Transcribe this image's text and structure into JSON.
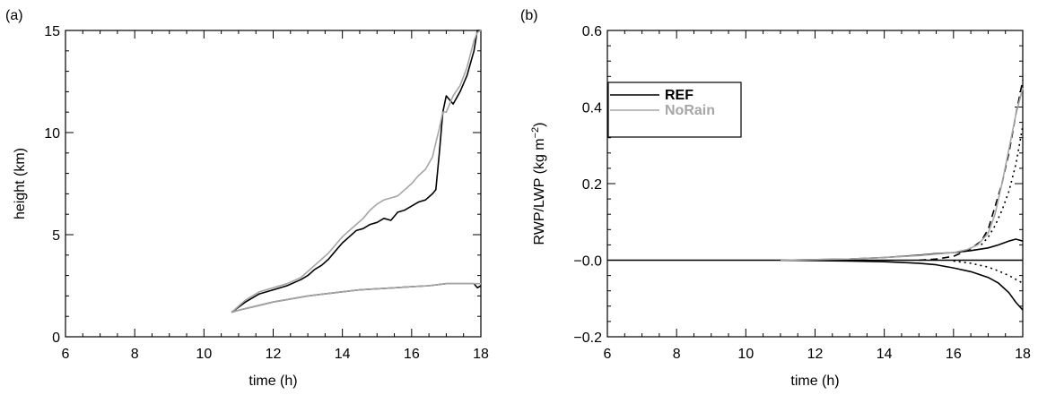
{
  "chart_data": [
    {
      "panel_label": "(a)",
      "type": "line",
      "title": "",
      "xlabel": "time (h)",
      "ylabel": "height (km)",
      "xlim": [
        6,
        18
      ],
      "ylim": [
        0,
        15
      ],
      "xticks": [
        6,
        8,
        10,
        12,
        14,
        16,
        18
      ],
      "yticks": [
        0,
        5,
        10,
        15
      ],
      "grid": false,
      "legend": null,
      "series": [
        {
          "role": "REF cloud top",
          "color": "#000000",
          "dash": "solid",
          "x": [
            10.8,
            11.2,
            11.6,
            12.0,
            12.4,
            12.8,
            13.0,
            13.2,
            13.4,
            13.6,
            13.8,
            14.0,
            14.2,
            14.4,
            14.6,
            14.8,
            15.0,
            15.2,
            15.4,
            15.6,
            15.8,
            16.0,
            16.2,
            16.4,
            16.6,
            16.7,
            16.8,
            16.9,
            17.0,
            17.2,
            17.4,
            17.6,
            17.8,
            17.9,
            18.0
          ],
          "y": [
            1.2,
            1.7,
            2.1,
            2.3,
            2.5,
            2.8,
            3.0,
            3.3,
            3.5,
            3.8,
            4.2,
            4.6,
            4.9,
            5.2,
            5.3,
            5.5,
            5.6,
            5.8,
            5.7,
            6.1,
            6.2,
            6.4,
            6.6,
            6.7,
            7.0,
            7.2,
            9.0,
            11.0,
            11.8,
            11.4,
            12.0,
            12.8,
            14.0,
            15.0,
            15.0
          ]
        },
        {
          "role": "NoRain cloud top",
          "color": "#a6a6a6",
          "dash": "solid",
          "x": [
            10.8,
            11.2,
            11.6,
            12.0,
            12.4,
            12.8,
            13.0,
            13.2,
            13.4,
            13.6,
            13.8,
            14.0,
            14.2,
            14.4,
            14.6,
            14.8,
            15.0,
            15.2,
            15.4,
            15.6,
            15.8,
            16.0,
            16.2,
            16.4,
            16.6,
            16.7,
            16.8,
            16.9,
            17.0,
            17.2,
            17.4,
            17.6,
            17.8,
            17.9,
            18.0
          ],
          "y": [
            1.2,
            1.8,
            2.2,
            2.4,
            2.6,
            2.9,
            3.2,
            3.5,
            3.8,
            4.1,
            4.5,
            4.9,
            5.2,
            5.5,
            5.8,
            6.2,
            6.5,
            6.7,
            6.8,
            6.9,
            7.2,
            7.5,
            7.9,
            8.2,
            8.8,
            9.5,
            10.2,
            11.0,
            11.0,
            11.8,
            12.3,
            13.2,
            14.5,
            14.9,
            15.0
          ]
        },
        {
          "role": "REF cloud base",
          "color": "#000000",
          "dash": "solid",
          "x": [
            10.8,
            11.0,
            11.5,
            12.0,
            12.5,
            13.0,
            13.5,
            14.0,
            14.5,
            15.0,
            15.5,
            16.0,
            16.5,
            17.0,
            17.5,
            17.8,
            17.9,
            18.0
          ],
          "y": [
            1.2,
            1.3,
            1.5,
            1.7,
            1.85,
            2.0,
            2.1,
            2.2,
            2.3,
            2.35,
            2.4,
            2.45,
            2.5,
            2.6,
            2.6,
            2.6,
            2.4,
            2.5
          ]
        },
        {
          "role": "NoRain cloud base",
          "color": "#a6a6a6",
          "dash": "solid",
          "x": [
            10.8,
            11.0,
            11.5,
            12.0,
            12.5,
            13.0,
            13.5,
            14.0,
            14.5,
            15.0,
            15.5,
            16.0,
            16.5,
            17.0,
            17.5,
            18.0
          ],
          "y": [
            1.2,
            1.3,
            1.5,
            1.7,
            1.85,
            2.0,
            2.1,
            2.2,
            2.3,
            2.35,
            2.4,
            2.45,
            2.5,
            2.6,
            2.6,
            2.6
          ]
        }
      ]
    },
    {
      "panel_label": "(b)",
      "type": "line",
      "title": "",
      "xlabel": "time (h)",
      "ylabel": "RWP/LWP (kg m",
      "ylabel_sup": "−2",
      "ylabel_close": ")",
      "xlim": [
        6,
        18
      ],
      "ylim": [
        -0.2,
        0.6
      ],
      "xticks": [
        6,
        8,
        10,
        12,
        14,
        16,
        18
      ],
      "yticks": [
        -0.2,
        0.0,
        0.2,
        0.4,
        0.6
      ],
      "ytick_labels": [
        "−0.2",
        "−0.0",
        "0.2",
        "0.4",
        "0.6"
      ],
      "grid": false,
      "legend": {
        "placement": "upper-left",
        "entries": [
          {
            "name": "REF",
            "color": "#000000"
          },
          {
            "name": "NoRain",
            "color": "#a6a6a6"
          }
        ]
      },
      "series": [
        {
          "role": "zero line",
          "color": "#000000",
          "dash": "solid",
          "x": [
            6,
            18
          ],
          "y": [
            0,
            0
          ]
        },
        {
          "role": "REF upper solid",
          "color": "#000000",
          "dash": "solid",
          "x": [
            11,
            13,
            14,
            15,
            15.5,
            16,
            16.5,
            17,
            17.3,
            17.6,
            17.8,
            18.0
          ],
          "y": [
            0.0,
            0.003,
            0.007,
            0.013,
            0.017,
            0.02,
            0.025,
            0.032,
            0.04,
            0.05,
            0.055,
            0.05
          ]
        },
        {
          "role": "REF lower solid",
          "color": "#000000",
          "dash": "solid",
          "x": [
            11,
            13,
            14,
            15,
            15.5,
            16,
            16.5,
            17,
            17.3,
            17.6,
            17.8,
            18.0
          ],
          "y": [
            0.0,
            -0.002,
            -0.004,
            -0.008,
            -0.012,
            -0.02,
            -0.03,
            -0.045,
            -0.06,
            -0.085,
            -0.11,
            -0.13
          ]
        },
        {
          "role": "REF dashed",
          "color": "#000000",
          "dash": "dashed",
          "x": [
            15,
            15.5,
            16,
            16.5,
            16.8,
            17.0,
            17.2,
            17.4,
            17.6,
            17.8,
            18.0
          ],
          "y": [
            0.0,
            0.003,
            0.01,
            0.03,
            0.05,
            0.08,
            0.14,
            0.2,
            0.28,
            0.38,
            0.47
          ]
        },
        {
          "role": "REF dotted upper",
          "color": "#000000",
          "dash": "dotted",
          "x": [
            16.8,
            17.0,
            17.2,
            17.4,
            17.6,
            17.8,
            18.0
          ],
          "y": [
            0.04,
            0.06,
            0.09,
            0.13,
            0.18,
            0.25,
            0.35
          ]
        },
        {
          "role": "REF dotted lower",
          "color": "#000000",
          "dash": "dotted",
          "x": [
            16,
            16.5,
            17.0,
            17.3,
            17.6,
            17.8,
            18.0
          ],
          "y": [
            -0.002,
            -0.008,
            -0.018,
            -0.028,
            -0.04,
            -0.05,
            -0.06
          ]
        },
        {
          "role": "NoRain",
          "color": "#a6a6a6",
          "dash": "solid",
          "x": [
            11,
            13,
            14,
            15,
            15.5,
            16,
            16.4,
            16.7,
            17.0,
            17.2,
            17.4,
            17.6,
            17.8,
            18.0
          ],
          "y": [
            0.0,
            0.003,
            0.007,
            0.012,
            0.016,
            0.02,
            0.028,
            0.04,
            0.07,
            0.12,
            0.2,
            0.29,
            0.38,
            0.45
          ]
        }
      ]
    }
  ]
}
